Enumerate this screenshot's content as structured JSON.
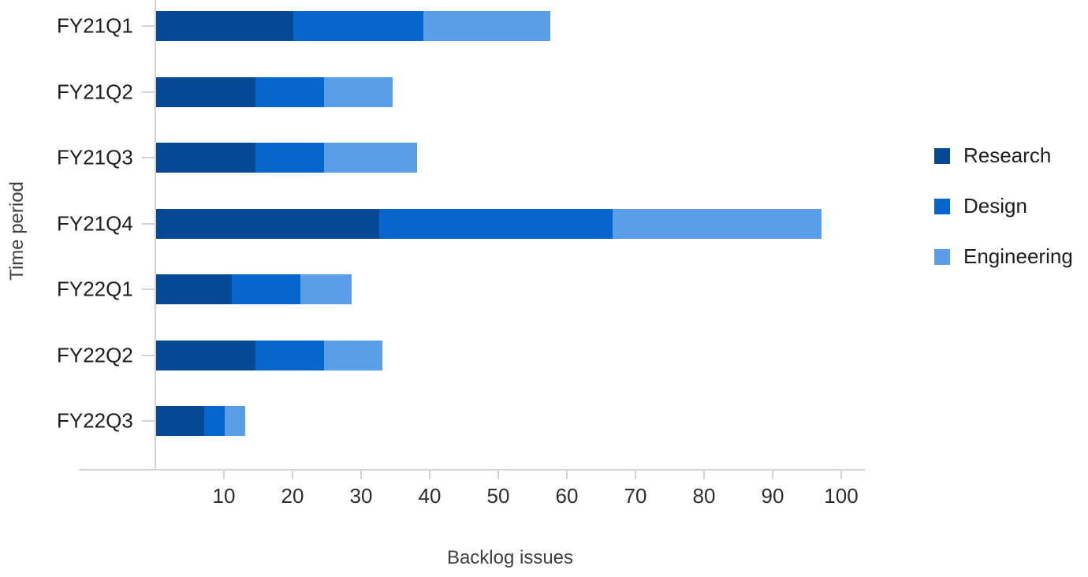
{
  "chart_data": {
    "type": "bar",
    "orientation": "horizontal",
    "stacked": true,
    "title": "",
    "xlabel": "Backlog issues",
    "ylabel": "Time period",
    "categories": [
      "FY21Q1",
      "FY21Q2",
      "FY21Q3",
      "FY21Q4",
      "FY22Q1",
      "FY22Q2",
      "FY22Q3"
    ],
    "series": [
      {
        "name": "Research",
        "color": "#054994",
        "values": [
          20,
          14.5,
          14.5,
          32.5,
          11,
          14.5,
          7
        ]
      },
      {
        "name": "Design",
        "color": "#0666cd",
        "values": [
          19,
          10,
          10,
          34,
          10,
          10,
          3
        ]
      },
      {
        "name": "Engineering",
        "color": "#599ee6",
        "values": [
          18.5,
          10,
          13.5,
          30.5,
          7.5,
          8.5,
          3
        ]
      }
    ],
    "totals": [
      57.5,
      34.5,
      38,
      97,
      28.5,
      33,
      13
    ],
    "xlim": [
      0,
      100
    ],
    "xticks": [
      10,
      20,
      30,
      40,
      50,
      60,
      70,
      80,
      90,
      100
    ],
    "grid": false,
    "legend_position": "right",
    "axis_color": "#d4d4d4",
    "tick_label_color": "#2d2d2d",
    "category_label_color": "#1e1e1e",
    "axis_title_color": "#3f3f3f"
  }
}
